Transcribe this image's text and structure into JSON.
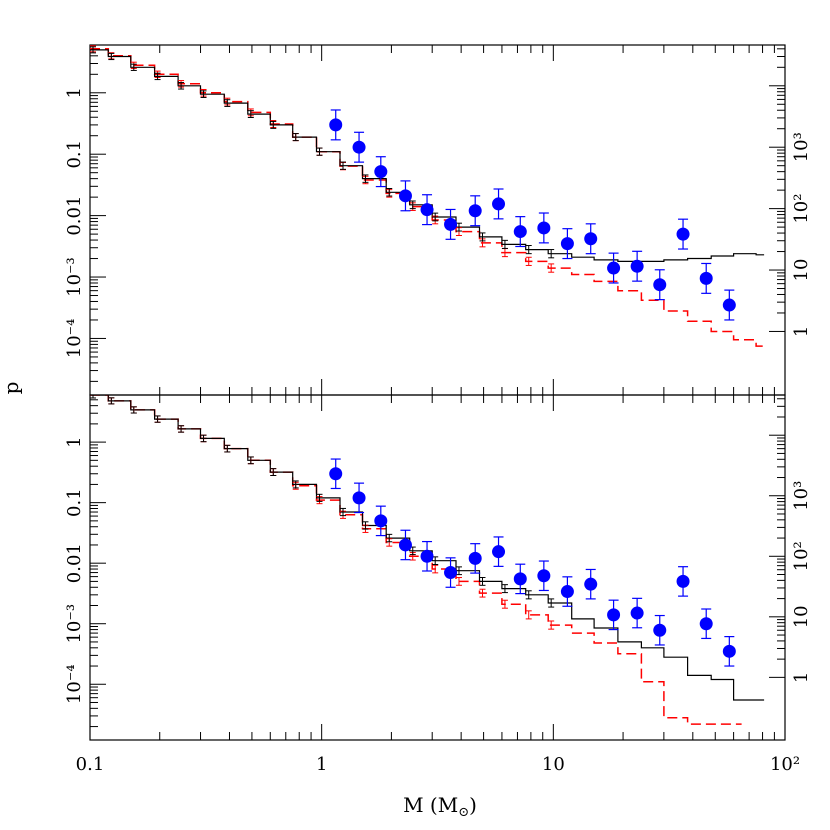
{
  "chart_data": {
    "type": "scatter",
    "xlabel": "M (M",
    "xlabel_sub": "⊙",
    "xlabel_close": ")",
    "ylabel": "p",
    "x_scale": "log",
    "xlim": [
      0.1,
      100
    ],
    "x_ticks": [
      {
        "value": 0.1,
        "label": "0.1"
      },
      {
        "value": 1,
        "label": "1"
      },
      {
        "value": 10,
        "label": "10"
      },
      {
        "value": 100,
        "label": "10²"
      }
    ],
    "y_scale": "log",
    "ylim": [
      1.2e-05,
      6
    ],
    "y_ticks_left": [
      {
        "value": 1,
        "label": "1"
      },
      {
        "value": 0.1,
        "label": "0.1"
      },
      {
        "value": 0.01,
        "label": "0.01"
      },
      {
        "value": 0.001,
        "label": "10⁻³"
      },
      {
        "value": 0.0001,
        "label": "10⁻⁴"
      }
    ],
    "y_ticks_right": [
      {
        "value": 0.00013,
        "label": "1"
      },
      {
        "value": 0.0013,
        "label": "10"
      },
      {
        "value": 0.013,
        "label": "10²"
      },
      {
        "value": 0.13,
        "label": "10³"
      }
    ],
    "colors": {
      "observed": "#0000ff",
      "model_black": "#000000",
      "model_red": "#ff0000"
    },
    "panels": [
      {
        "name": "top",
        "observed_points": [
          {
            "x": 1.15,
            "y": 0.3
          },
          {
            "x": 1.45,
            "y": 0.13
          },
          {
            "x": 1.8,
            "y": 0.052
          },
          {
            "x": 2.3,
            "y": 0.021
          },
          {
            "x": 2.85,
            "y": 0.0125
          },
          {
            "x": 3.6,
            "y": 0.0072
          },
          {
            "x": 4.6,
            "y": 0.012
          },
          {
            "x": 5.8,
            "y": 0.0155
          },
          {
            "x": 7.2,
            "y": 0.0055
          },
          {
            "x": 9.1,
            "y": 0.0063
          },
          {
            "x": 11.5,
            "y": 0.0035
          },
          {
            "x": 14.5,
            "y": 0.0042
          },
          {
            "x": 18.2,
            "y": 0.0014
          },
          {
            "x": 23.0,
            "y": 0.0015
          },
          {
            "x": 28.8,
            "y": 0.00075
          },
          {
            "x": 36.3,
            "y": 0.005
          },
          {
            "x": 45.7,
            "y": 0.00095
          },
          {
            "x": 57.5,
            "y": 0.00035
          }
        ],
        "black_model": [
          [
            0.1,
            5.0
          ],
          [
            0.12,
            3.9
          ],
          [
            0.15,
            2.6
          ],
          [
            0.19,
            1.85
          ],
          [
            0.24,
            1.3
          ],
          [
            0.3,
            0.95
          ],
          [
            0.38,
            0.68
          ],
          [
            0.48,
            0.45
          ],
          [
            0.6,
            0.3
          ],
          [
            0.75,
            0.19
          ],
          [
            0.95,
            0.11
          ],
          [
            1.2,
            0.065
          ],
          [
            1.5,
            0.04
          ],
          [
            1.9,
            0.024
          ],
          [
            2.4,
            0.015
          ],
          [
            3.0,
            0.0095
          ],
          [
            3.8,
            0.0065
          ],
          [
            4.8,
            0.0045
          ],
          [
            6.0,
            0.0034
          ],
          [
            7.6,
            0.0028
          ],
          [
            9.5,
            0.0024
          ],
          [
            12,
            0.0021
          ],
          [
            15,
            0.0019
          ],
          [
            19,
            0.0018
          ],
          [
            24,
            0.0018
          ],
          [
            30,
            0.0019
          ],
          [
            38,
            0.002
          ],
          [
            48,
            0.0022
          ],
          [
            60,
            0.0024
          ],
          [
            75,
            0.0023
          ]
        ],
        "red_model": [
          [
            0.1,
            5.2
          ],
          [
            0.12,
            4.0
          ],
          [
            0.15,
            2.8
          ],
          [
            0.19,
            2.0
          ],
          [
            0.24,
            1.4
          ],
          [
            0.3,
            1.0
          ],
          [
            0.38,
            0.72
          ],
          [
            0.48,
            0.48
          ],
          [
            0.6,
            0.31
          ],
          [
            0.75,
            0.19
          ],
          [
            0.95,
            0.11
          ],
          [
            1.2,
            0.064
          ],
          [
            1.5,
            0.038
          ],
          [
            1.9,
            0.023
          ],
          [
            2.4,
            0.014
          ],
          [
            3.0,
            0.0085
          ],
          [
            3.8,
            0.0055
          ],
          [
            4.8,
            0.0036
          ],
          [
            6.0,
            0.0025
          ],
          [
            7.6,
            0.0018
          ],
          [
            9.5,
            0.0014
          ],
          [
            12,
            0.0011
          ],
          [
            15,
            0.00085
          ],
          [
            19,
            0.0006
          ],
          [
            24,
            0.00042
          ],
          [
            30,
            0.00028
          ],
          [
            38,
            0.00019
          ],
          [
            48,
            0.00013
          ],
          [
            60,
            9.5e-05
          ],
          [
            75,
            7.5e-05
          ]
        ]
      },
      {
        "name": "bottom",
        "observed_points": [
          {
            "x": 1.15,
            "y": 0.3
          },
          {
            "x": 1.45,
            "y": 0.12
          },
          {
            "x": 1.8,
            "y": 0.05
          },
          {
            "x": 2.3,
            "y": 0.02
          },
          {
            "x": 2.85,
            "y": 0.013
          },
          {
            "x": 3.6,
            "y": 0.007
          },
          {
            "x": 4.6,
            "y": 0.012
          },
          {
            "x": 5.8,
            "y": 0.0155
          },
          {
            "x": 7.2,
            "y": 0.0055
          },
          {
            "x": 9.1,
            "y": 0.0062
          },
          {
            "x": 11.5,
            "y": 0.0034
          },
          {
            "x": 14.5,
            "y": 0.0045
          },
          {
            "x": 18.2,
            "y": 0.0014
          },
          {
            "x": 23.0,
            "y": 0.0015
          },
          {
            "x": 28.8,
            "y": 0.00078
          },
          {
            "x": 36.3,
            "y": 0.005
          },
          {
            "x": 45.7,
            "y": 0.001
          },
          {
            "x": 57.5,
            "y": 0.00035
          }
        ],
        "black_model": [
          [
            0.1,
            6.0
          ],
          [
            0.12,
            4.8
          ],
          [
            0.15,
            3.4
          ],
          [
            0.19,
            2.4
          ],
          [
            0.24,
            1.65
          ],
          [
            0.3,
            1.15
          ],
          [
            0.38,
            0.78
          ],
          [
            0.48,
            0.5
          ],
          [
            0.6,
            0.32
          ],
          [
            0.75,
            0.2
          ],
          [
            0.95,
            0.12
          ],
          [
            1.2,
            0.07
          ],
          [
            1.5,
            0.042
          ],
          [
            1.9,
            0.026
          ],
          [
            2.4,
            0.016
          ],
          [
            3.0,
            0.011
          ],
          [
            3.8,
            0.0075
          ],
          [
            4.8,
            0.005
          ],
          [
            6.0,
            0.0038
          ],
          [
            7.6,
            0.003
          ],
          [
            9.5,
            0.0022
          ],
          [
            12,
            0.0012
          ],
          [
            15,
            0.00085
          ],
          [
            19,
            0.0005
          ],
          [
            24,
            0.0004
          ],
          [
            30,
            0.00028
          ],
          [
            38,
            0.00014
          ],
          [
            48,
            0.00012
          ],
          [
            60,
            5.5e-05
          ],
          [
            75,
            5.5e-05
          ]
        ],
        "red_model": [
          [
            0.1,
            6.0
          ],
          [
            0.12,
            4.8
          ],
          [
            0.15,
            3.4
          ],
          [
            0.19,
            2.4
          ],
          [
            0.24,
            1.65
          ],
          [
            0.3,
            1.15
          ],
          [
            0.38,
            0.78
          ],
          [
            0.48,
            0.5
          ],
          [
            0.6,
            0.32
          ],
          [
            0.75,
            0.19
          ],
          [
            0.95,
            0.11
          ],
          [
            1.2,
            0.063
          ],
          [
            1.5,
            0.037
          ],
          [
            1.9,
            0.022
          ],
          [
            2.4,
            0.013
          ],
          [
            3.0,
            0.008
          ],
          [
            3.8,
            0.005
          ],
          [
            4.8,
            0.0032
          ],
          [
            6.0,
            0.0021
          ],
          [
            7.6,
            0.0014
          ],
          [
            9.5,
            0.00095
          ],
          [
            12,
            0.0007
          ],
          [
            15,
            0.00048
          ],
          [
            19,
            0.00032
          ],
          [
            24,
            0.00011
          ],
          [
            30,
            2.8e-05
          ],
          [
            38,
            2.2e-05
          ],
          [
            48,
            2.2e-05
          ],
          [
            60,
            2.2e-05
          ]
        ]
      }
    ]
  }
}
